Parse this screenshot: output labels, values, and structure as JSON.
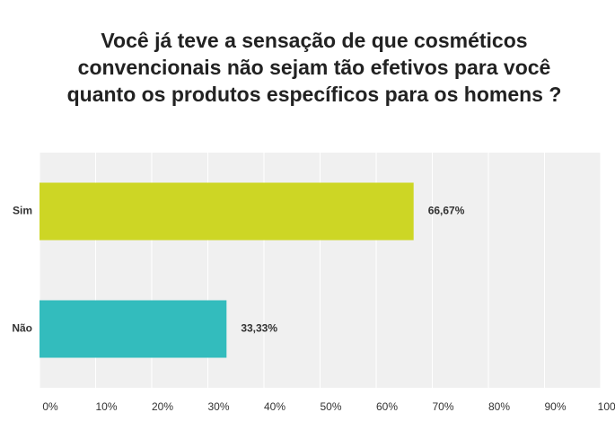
{
  "chart_data": {
    "type": "bar",
    "orientation": "horizontal",
    "title": "Você já teve a sensação de que cosméticos convencionais não sejam tão efetivos para você quanto os produtos específicos para os homens ?",
    "categories": [
      "Sim",
      "Não"
    ],
    "values": [
      66.67,
      33.33
    ],
    "value_labels": [
      "66,67%",
      "33,33%"
    ],
    "colors": [
      "#cdd625",
      "#33bcbd"
    ],
    "xlim": [
      0,
      100
    ],
    "xticks": [
      {
        "value": 0,
        "label": "0%"
      },
      {
        "value": 10,
        "label": "10%"
      },
      {
        "value": 20,
        "label": "20%"
      },
      {
        "value": 30,
        "label": "30%"
      },
      {
        "value": 40,
        "label": "40%"
      },
      {
        "value": 50,
        "label": "50%"
      },
      {
        "value": 60,
        "label": "60%"
      },
      {
        "value": 70,
        "label": "70%"
      },
      {
        "value": 80,
        "label": "80%"
      },
      {
        "value": 90,
        "label": "90%"
      },
      {
        "value": 100,
        "label": "100%"
      }
    ],
    "grid": true
  }
}
